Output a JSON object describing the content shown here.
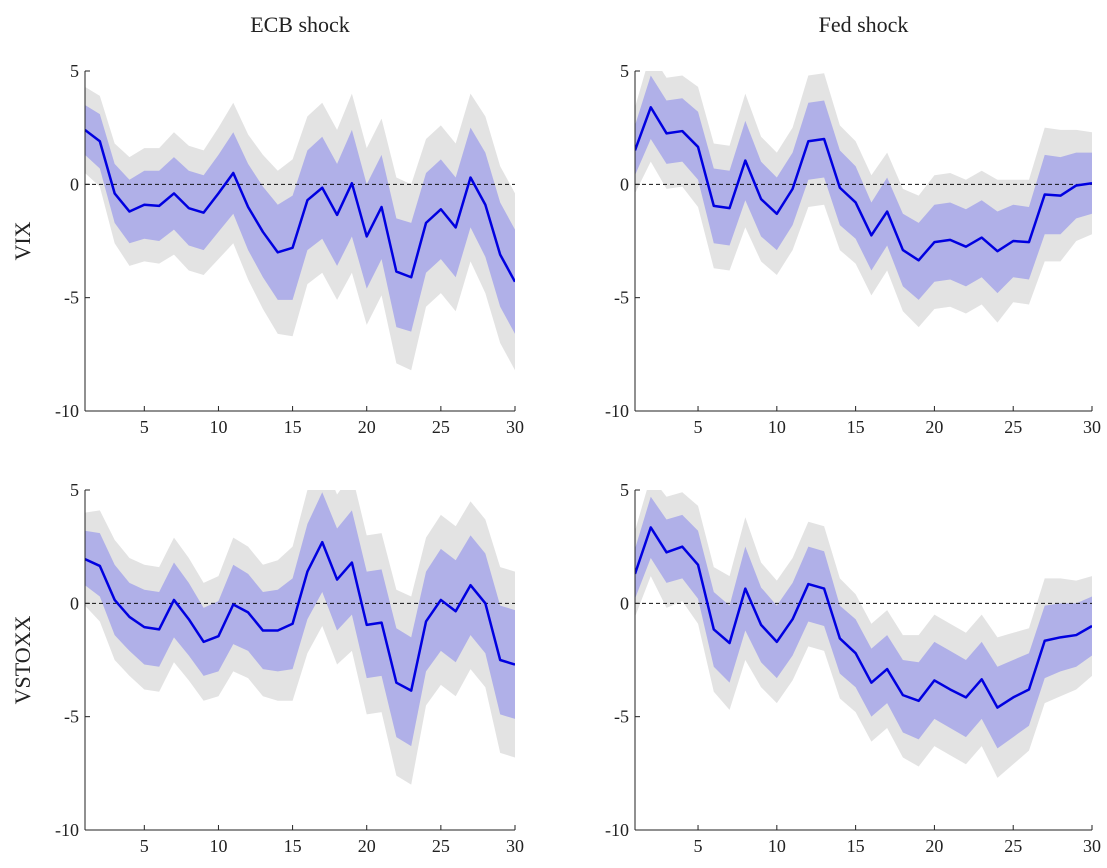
{
  "chart_data": [
    {
      "type": "line",
      "title": "ECB shock",
      "ylabel": "VIX",
      "x": [
        1,
        2,
        3,
        4,
        5,
        6,
        7,
        8,
        9,
        10,
        11,
        12,
        13,
        14,
        15,
        16,
        17,
        18,
        19,
        20,
        21,
        22,
        23,
        24,
        25,
        26,
        27,
        28,
        29,
        30
      ],
      "values": [
        2.4,
        1.9,
        -0.4,
        -1.2,
        -0.9,
        -0.95,
        -0.4,
        -1.05,
        -1.25,
        -0.4,
        0.5,
        -1.0,
        -2.1,
        -3.0,
        -2.8,
        -0.7,
        -0.15,
        -1.35,
        0.05,
        -2.3,
        -1.0,
        -3.85,
        -4.1,
        -1.7,
        -1.1,
        -1.9,
        0.3,
        -0.9,
        -3.1,
        -4.3
      ],
      "color": "#0000e0",
      "bands": [
        {
          "color": "#e3e3e3",
          "upper": [
            4.3,
            3.9,
            1.8,
            1.2,
            1.6,
            1.6,
            2.3,
            1.7,
            1.5,
            2.5,
            3.6,
            2.2,
            1.3,
            0.6,
            1.1,
            3.0,
            3.6,
            2.4,
            4.0,
            1.6,
            2.9,
            0.3,
            0,
            2.0,
            2.6,
            1.8,
            4.0,
            3.0,
            0.8,
            -0.4
          ],
          "lower": [
            0.5,
            -0.1,
            -2.6,
            -3.6,
            -3.4,
            -3.5,
            -3.1,
            -3.8,
            -4.0,
            -3.3,
            -2.6,
            -4.2,
            -5.5,
            -6.6,
            -6.7,
            -4.4,
            -3.9,
            -5.1,
            -3.9,
            -6.2,
            -4.9,
            -7.9,
            -8.2,
            -5.4,
            -4.8,
            -5.6,
            -3.4,
            -4.8,
            -7.0,
            -8.2
          ]
        },
        {
          "color": "#b0b0e8",
          "upper": [
            3.5,
            3.1,
            0.9,
            0.2,
            0.6,
            0.6,
            1.2,
            0.6,
            0.4,
            1.3,
            2.3,
            0.9,
            -0.1,
            -0.9,
            -0.5,
            1.5,
            2.1,
            0.9,
            2.4,
            0,
            1.3,
            -1.5,
            -1.7,
            0.5,
            1.1,
            0.3,
            2.5,
            1.4,
            -0.8,
            -2.0
          ],
          "lower": [
            1.3,
            0.7,
            -1.7,
            -2.6,
            -2.4,
            -2.5,
            -2.0,
            -2.7,
            -2.9,
            -2.1,
            -1.3,
            -2.9,
            -4.1,
            -5.1,
            -5.1,
            -2.9,
            -2.4,
            -3.6,
            -2.3,
            -4.6,
            -3.3,
            -6.3,
            -6.5,
            -3.9,
            -3.3,
            -4.1,
            -1.9,
            -3.2,
            -5.4,
            -6.6
          ]
        }
      ],
      "reference_line": 0,
      "xlim": [
        1,
        30
      ],
      "xticks": [
        5,
        10,
        15,
        20,
        25,
        30
      ],
      "ylim": [
        -10,
        5
      ],
      "yticks": [
        -10,
        -5,
        0,
        5
      ]
    },
    {
      "type": "line",
      "title": "Fed shock",
      "x": [
        1,
        2,
        3,
        4,
        5,
        6,
        7,
        8,
        9,
        10,
        11,
        12,
        13,
        14,
        15,
        16,
        17,
        18,
        19,
        20,
        21,
        22,
        23,
        24,
        25,
        26,
        27,
        28,
        29,
        30
      ],
      "values": [
        1.5,
        3.4,
        2.25,
        2.35,
        1.65,
        -0.95,
        -1.05,
        1.05,
        -0.65,
        -1.3,
        -0.2,
        1.9,
        2.0,
        -0.15,
        -0.8,
        -2.25,
        -1.2,
        -2.9,
        -3.35,
        -2.55,
        -2.45,
        -2.75,
        -2.35,
        -2.95,
        -2.5,
        -2.55,
        -0.45,
        -0.5,
        -0.05,
        0.05
      ],
      "color": "#0000e0",
      "bands": [
        {
          "color": "#e3e3e3",
          "upper": [
            3.4,
            5.8,
            4.7,
            4.8,
            4.3,
            1.8,
            1.7,
            4.0,
            2.1,
            1.4,
            2.5,
            4.8,
            4.9,
            2.6,
            1.9,
            0.4,
            1.4,
            -0.2,
            -0.5,
            0.4,
            0.5,
            0.2,
            0.6,
            0.2,
            0.2,
            0.2,
            2.5,
            2.4,
            2.4,
            2.3
          ],
          "lower": [
            -0.4,
            1.0,
            -0.2,
            -0.1,
            -1.0,
            -3.7,
            -3.8,
            -1.9,
            -3.4,
            -4.0,
            -2.9,
            -1.0,
            -0.9,
            -2.9,
            -3.5,
            -4.9,
            -3.8,
            -5.6,
            -6.3,
            -5.5,
            -5.4,
            -5.7,
            -5.3,
            -6.1,
            -5.2,
            -5.3,
            -3.4,
            -3.4,
            -2.5,
            -2.2
          ]
        },
        {
          "color": "#b0b0e8",
          "upper": [
            2.6,
            4.8,
            3.7,
            3.8,
            3.2,
            0.7,
            0.6,
            2.8,
            1.0,
            0.3,
            1.4,
            3.6,
            3.7,
            1.5,
            0.8,
            -0.8,
            0.3,
            -1.3,
            -1.7,
            -0.9,
            -0.8,
            -1.1,
            -0.7,
            -1.2,
            -0.9,
            -1.0,
            1.3,
            1.2,
            1.4,
            1.4
          ],
          "lower": [
            0.4,
            2.0,
            0.9,
            1.0,
            0.2,
            -2.6,
            -2.7,
            -0.7,
            -2.3,
            -2.9,
            -1.8,
            0.2,
            0.3,
            -1.8,
            -2.4,
            -3.8,
            -2.7,
            -4.5,
            -5.1,
            -4.3,
            -4.2,
            -4.5,
            -4.1,
            -4.8,
            -4.1,
            -4.2,
            -2.2,
            -2.2,
            -1.5,
            -1.3
          ]
        }
      ],
      "reference_line": 0,
      "xlim": [
        1,
        30
      ],
      "xticks": [
        5,
        10,
        15,
        20,
        25,
        30
      ],
      "ylim": [
        -10,
        5
      ],
      "yticks": [
        -10,
        -5,
        0,
        5
      ]
    },
    {
      "type": "line",
      "ylabel": "VSTOXX",
      "x": [
        1,
        2,
        3,
        4,
        5,
        6,
        7,
        8,
        9,
        10,
        11,
        12,
        13,
        14,
        15,
        16,
        17,
        18,
        19,
        20,
        21,
        22,
        23,
        24,
        25,
        26,
        27,
        28,
        29,
        30
      ],
      "values": [
        1.95,
        1.65,
        0.15,
        -0.6,
        -1.05,
        -1.15,
        0.15,
        -0.7,
        -1.7,
        -1.45,
        -0.05,
        -0.4,
        -1.2,
        -1.2,
        -0.9,
        1.4,
        2.7,
        1.05,
        1.8,
        -0.95,
        -0.85,
        -3.5,
        -3.85,
        -0.8,
        0.15,
        -0.35,
        0.8,
        0.0,
        -2.5,
        -2.7
      ],
      "color": "#0000e0",
      "bands": [
        {
          "color": "#e3e3e3",
          "upper": [
            4.0,
            4.1,
            2.8,
            2.0,
            1.7,
            1.6,
            2.9,
            2.0,
            0.9,
            1.2,
            2.9,
            2.5,
            1.7,
            1.9,
            2.5,
            5.0,
            6.4,
            4.8,
            5.7,
            3.0,
            3.1,
            0.6,
            0.3,
            2.9,
            3.9,
            3.4,
            4.5,
            3.7,
            1.6,
            1.4
          ],
          "lower": [
            -0.1,
            -0.8,
            -2.5,
            -3.2,
            -3.8,
            -3.9,
            -2.6,
            -3.4,
            -4.3,
            -4.1,
            -3.0,
            -3.3,
            -4.1,
            -4.3,
            -4.3,
            -2.2,
            -1.0,
            -2.7,
            -2.1,
            -4.9,
            -4.8,
            -7.6,
            -8.0,
            -4.5,
            -3.6,
            -4.1,
            -2.9,
            -3.7,
            -6.6,
            -6.8
          ]
        },
        {
          "color": "#b0b0e8",
          "upper": [
            3.2,
            3.1,
            1.7,
            0.9,
            0.6,
            0.5,
            1.8,
            0.9,
            -0.2,
            0.1,
            1.7,
            1.3,
            0.5,
            0.6,
            1.1,
            3.5,
            4.9,
            3.3,
            4.1,
            1.4,
            1.5,
            -1.1,
            -1.5,
            1.4,
            2.4,
            1.9,
            3.0,
            2.2,
            -0.1,
            -0.3
          ],
          "lower": [
            0.8,
            0.3,
            -1.4,
            -2.1,
            -2.7,
            -2.8,
            -1.5,
            -2.3,
            -3.2,
            -3.0,
            -1.8,
            -2.1,
            -2.9,
            -3.0,
            -2.9,
            -0.7,
            0.5,
            -1.2,
            -0.5,
            -3.3,
            -3.2,
            -5.9,
            -6.3,
            -3.0,
            -2.1,
            -2.6,
            -1.4,
            -2.2,
            -4.9,
            -5.1
          ]
        }
      ],
      "reference_line": 0,
      "xlim": [
        1,
        30
      ],
      "xticks": [
        5,
        10,
        15,
        20,
        25,
        30
      ],
      "ylim": [
        -10,
        5
      ],
      "yticks": [
        -10,
        -5,
        0,
        5
      ]
    },
    {
      "type": "line",
      "x": [
        1,
        2,
        3,
        4,
        5,
        6,
        7,
        8,
        9,
        10,
        11,
        12,
        13,
        14,
        15,
        16,
        17,
        18,
        19,
        20,
        21,
        22,
        23,
        24,
        25,
        26,
        27,
        28,
        29,
        30
      ],
      "values": [
        1.3,
        3.35,
        2.25,
        2.5,
        1.7,
        -1.15,
        -1.75,
        0.65,
        -0.95,
        -1.7,
        -0.7,
        0.85,
        0.65,
        -1.55,
        -2.2,
        -3.5,
        -2.9,
        -4.05,
        -4.3,
        -3.4,
        -3.8,
        -4.15,
        -3.35,
        -4.6,
        -4.15,
        -3.8,
        -1.65,
        -1.5,
        -1.4,
        -1.0
      ],
      "color": "#0000e0",
      "bands": [
        {
          "color": "#e3e3e3",
          "upper": [
            3.2,
            5.6,
            4.7,
            4.9,
            4.3,
            1.6,
            1.2,
            3.8,
            1.8,
            1.0,
            2.0,
            3.6,
            3.4,
            1.1,
            0.4,
            -0.9,
            -0.3,
            -1.4,
            -1.4,
            -0.5,
            -0.9,
            -1.3,
            -0.5,
            -1.5,
            -1.3,
            -1.1,
            1.1,
            1.1,
            1.0,
            1.2
          ],
          "lower": [
            -0.6,
            1.2,
            -0.2,
            0.1,
            -0.9,
            -3.9,
            -4.7,
            -2.5,
            -3.7,
            -4.4,
            -3.4,
            -1.9,
            -2.1,
            -4.2,
            -4.8,
            -6.1,
            -5.5,
            -6.8,
            -7.2,
            -6.3,
            -6.7,
            -7.1,
            -6.3,
            -7.7,
            -7.1,
            -6.5,
            -4.4,
            -4.1,
            -3.8,
            -3.2
          ]
        },
        {
          "color": "#b0b0e8",
          "upper": [
            2.4,
            4.7,
            3.7,
            3.9,
            3.2,
            0.5,
            -0.1,
            2.5,
            0.7,
            -0.1,
            0.9,
            2.5,
            2.3,
            -0.1,
            -0.7,
            -2.0,
            -1.4,
            -2.5,
            -2.6,
            -1.7,
            -2.1,
            -2.5,
            -1.7,
            -2.8,
            -2.5,
            -2.2,
            -0.1,
            0,
            0,
            0.3
          ],
          "lower": [
            0.2,
            2.0,
            0.9,
            1.1,
            0.2,
            -2.8,
            -3.5,
            -1.2,
            -2.6,
            -3.3,
            -2.3,
            -0.8,
            -1.0,
            -3.1,
            -3.7,
            -5.0,
            -4.4,
            -5.7,
            -6.0,
            -5.1,
            -5.5,
            -5.9,
            -5.1,
            -6.4,
            -5.9,
            -5.4,
            -3.3,
            -3.0,
            -2.8,
            -2.3
          ]
        }
      ],
      "reference_line": 0,
      "xlim": [
        1,
        30
      ],
      "xticks": [
        5,
        10,
        15,
        20,
        25,
        30
      ],
      "ylim": [
        -10,
        5
      ],
      "yticks": [
        -10,
        -5,
        0,
        5
      ]
    }
  ]
}
